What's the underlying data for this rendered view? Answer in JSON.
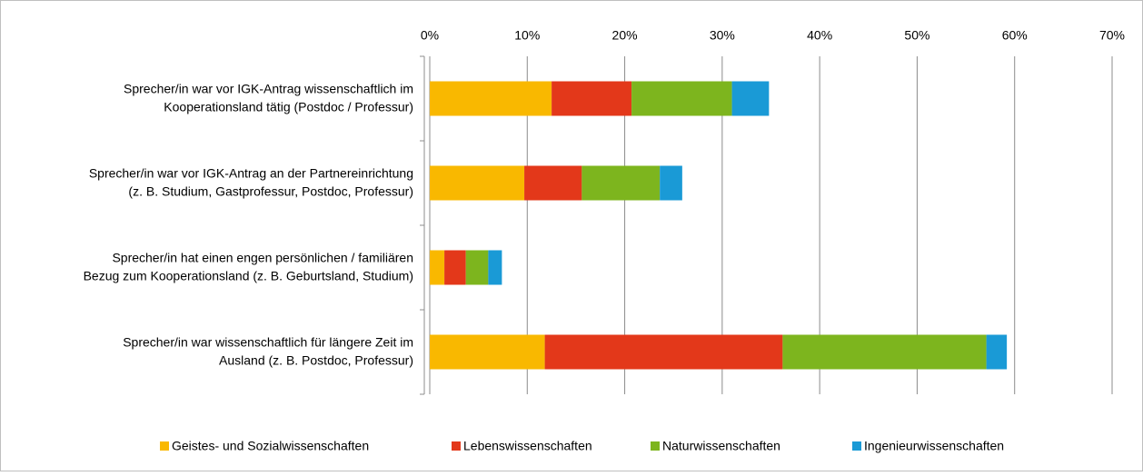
{
  "chart_data": {
    "type": "stacked-barh",
    "categories": [
      [
        "Sprecher/in war vor IGK-Antrag wissenschaftlich im",
        "Kooperationsland tätig (Postdoc / Professur)"
      ],
      [
        "Sprecher/in war vor IGK-Antrag an der Partnereinrichtung",
        "(z. B. Studium, Gastprofessur, Postdoc, Professur)"
      ],
      [
        "Sprecher/in hat einen engen persönlichen / familiären",
        "Bezug zum Kooperationsland (z. B. Geburtsland, Studium)"
      ],
      [
        "Sprecher/in war wissenschaftlich für längere Zeit im",
        "Ausland (z. B. Postdoc, Professur)"
      ]
    ],
    "series": [
      {
        "name": "Geistes- und Sozialwissenschaften",
        "color": "#f9b800",
        "values": [
          12.5,
          9.7,
          1.5,
          11.8
        ]
      },
      {
        "name": "Lebenswissenschaften",
        "color": "#e3381a",
        "values": [
          8.2,
          5.9,
          2.2,
          24.4
        ]
      },
      {
        "name": "Naturwissenschaften",
        "color": "#7db51e",
        "values": [
          10.3,
          8.0,
          2.3,
          20.9
        ]
      },
      {
        "name": "Ingenieurwissenschaften",
        "color": "#1a9ad6",
        "values": [
          3.8,
          2.3,
          1.4,
          2.1
        ]
      }
    ],
    "xlim": [
      0,
      70
    ],
    "xticks": [
      {
        "value": 0,
        "label": "0%"
      },
      {
        "value": 10,
        "label": "10%"
      },
      {
        "value": 20,
        "label": "20%"
      },
      {
        "value": 30,
        "label": "30%"
      },
      {
        "value": 40,
        "label": "40%"
      },
      {
        "value": 50,
        "label": "50%"
      },
      {
        "value": 60,
        "label": "60%"
      },
      {
        "value": 70,
        "label": "70%"
      }
    ],
    "grid": true,
    "legend": "bottom"
  }
}
